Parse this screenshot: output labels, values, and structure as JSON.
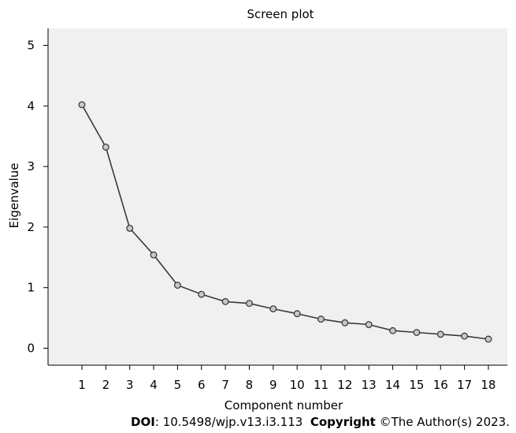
{
  "chart_data": {
    "type": "line",
    "title": "Screen plot",
    "xlabel": "Component number",
    "ylabel": "Eigenvalue",
    "x": [
      1,
      2,
      3,
      4,
      5,
      6,
      7,
      8,
      9,
      10,
      11,
      12,
      13,
      14,
      15,
      16,
      17,
      18
    ],
    "values": [
      4.02,
      3.32,
      1.98,
      1.54,
      1.04,
      0.89,
      0.77,
      0.74,
      0.65,
      0.57,
      0.48,
      0.42,
      0.39,
      0.29,
      0.26,
      0.23,
      0.2,
      0.15
    ],
    "ylim": [
      -0.28,
      5.28
    ],
    "yticks": [
      0,
      1,
      2,
      3,
      4,
      5
    ],
    "xticks": [
      1,
      2,
      3,
      4,
      5,
      6,
      7,
      8,
      9,
      10,
      11,
      12,
      13,
      14,
      15,
      16,
      17,
      18
    ],
    "grid": false,
    "colors": {
      "plot_background": "#f0f0f0",
      "line": "#3a3a3a",
      "marker_fill": "#c8c8c8",
      "axis": "#000000"
    }
  },
  "footer": {
    "doi_label": "DOI",
    "doi_value": ": 10.5498/wjp.v13.i3.113",
    "copyright_label": "Copyright",
    "copyright_value": " ©The Author(s) 2023."
  }
}
